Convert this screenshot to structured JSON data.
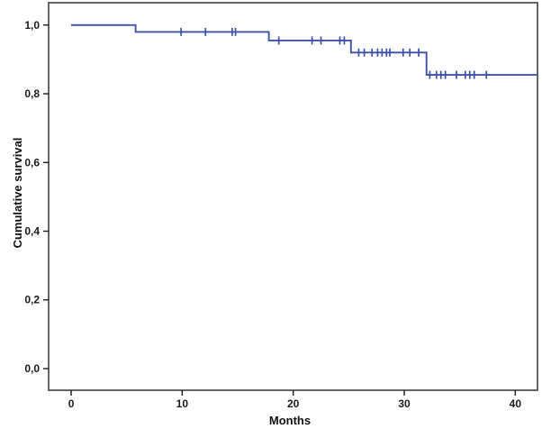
{
  "figure": {
    "background": "#ffffff"
  },
  "colors": {
    "curve": "#3d51a6",
    "frame": "#3f3f3f",
    "tick": "#1a1a1a",
    "text": "#111111",
    "background": "#ffffff"
  },
  "chart_data": {
    "type": "line",
    "subtype": "kaplan-meier-step-function",
    "title": "",
    "xlabel": "Months",
    "ylabel": "Cumulative survival",
    "legend": "none",
    "grid": false,
    "decimal_separator": ",",
    "xlim": [
      -2.03,
      42.0
    ],
    "ylim": [
      -0.063,
      1.065
    ],
    "x_ticks": [
      {
        "value": 0,
        "label": "0"
      },
      {
        "value": 10,
        "label": "10"
      },
      {
        "value": 20,
        "label": "20"
      },
      {
        "value": 30,
        "label": "30"
      },
      {
        "value": 40,
        "label": "40"
      }
    ],
    "y_ticks": [
      {
        "value": 1.0,
        "label": "1,0"
      },
      {
        "value": 0.8,
        "label": "0,8"
      },
      {
        "value": 0.6,
        "label": "0,6"
      },
      {
        "value": 0.4,
        "label": "0,4"
      },
      {
        "value": 0.2,
        "label": "0,2"
      },
      {
        "value": 0.0,
        "label": "0,0"
      }
    ],
    "series": [
      {
        "name": "cumulative-survival",
        "steps": [
          {
            "month": 0,
            "survival": 1.0
          },
          {
            "month": 5.8,
            "survival": 0.98
          },
          {
            "month": 17.8,
            "survival": 0.955
          },
          {
            "month": 25.2,
            "survival": 0.92
          },
          {
            "month": 32.0,
            "survival": 0.855
          }
        ],
        "end_month": 42.0,
        "censored": [
          {
            "survival": 0.98,
            "months": [
              9.9,
              12.1,
              14.5,
              14.8
            ]
          },
          {
            "survival": 0.955,
            "months": [
              18.7,
              21.7,
              22.5,
              24.2,
              24.6
            ]
          },
          {
            "survival": 0.92,
            "months": [
              25.9,
              26.4,
              27.1,
              27.6,
              28.0,
              28.4,
              28.7,
              29.9,
              30.5,
              31.3
            ]
          },
          {
            "survival": 0.855,
            "months": [
              32.3,
              32.9,
              33.3,
              33.7,
              34.7,
              35.5,
              35.9,
              36.3,
              37.4
            ]
          }
        ]
      }
    ]
  }
}
